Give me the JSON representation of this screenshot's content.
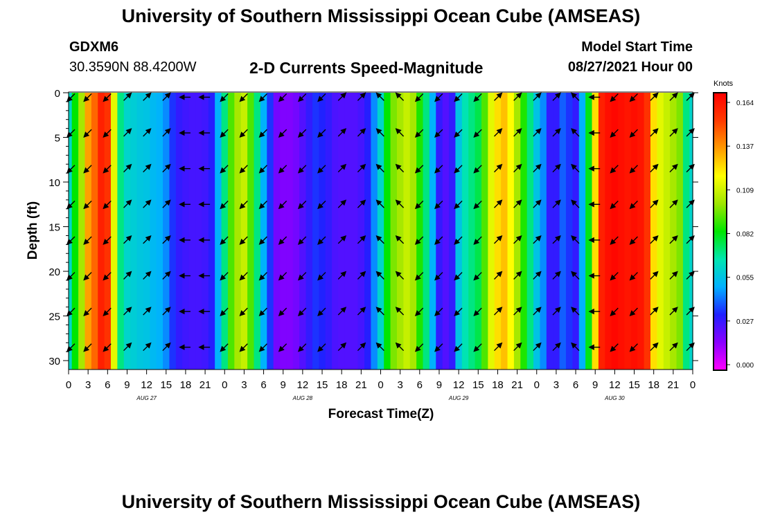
{
  "header": {
    "title": "University of Southern Mississippi Ocean Cube (AMSEAS)",
    "station_id": "GDXM6",
    "coords": "30.3590N  88.4200W",
    "plot_title": "2-D Currents Speed-Magnitude",
    "start_label": "Model Start Time",
    "start_value": "08/27/2021 Hour 00"
  },
  "footer": {
    "title": "University of Southern Mississippi Ocean Cube (AMSEAS)"
  },
  "colorbar": {
    "unit": "Knots",
    "ticks": [
      "0.164",
      "0.137",
      "0.109",
      "0.082",
      "0.055",
      "0.027",
      "0.000"
    ],
    "stops": [
      "#ff00ff",
      "#8a00ff",
      "#2020ff",
      "#00b0ff",
      "#00e6b0",
      "#00e600",
      "#9ee600",
      "#ffff00",
      "#ff9a00",
      "#ff3a00",
      "#ff0000"
    ]
  },
  "chart_data": {
    "type": "heatmap",
    "title": "2-D Currents Speed-Magnitude",
    "xlabel": "Forecast Time(Z)",
    "ylabel": "Depth (ft)",
    "unit": "Knots",
    "vmin": 0.0,
    "vmax": 0.164,
    "x_hours": [
      0,
      3,
      6,
      9,
      12,
      15,
      18,
      21,
      24,
      27,
      30,
      33,
      36,
      39,
      42,
      45,
      48,
      51,
      54,
      57,
      60,
      63,
      66,
      69,
      72,
      75,
      78,
      81,
      84,
      87,
      90,
      93,
      96
    ],
    "x_tick_labels": [
      "0",
      "3",
      "6",
      "9",
      "12",
      "15",
      "18",
      "21",
      "0",
      "3",
      "6",
      "9",
      "12",
      "15",
      "18",
      "21",
      "0",
      "3",
      "6",
      "9",
      "12",
      "15",
      "18",
      "21",
      "0",
      "3",
      "6",
      "9",
      "12",
      "15",
      "18",
      "21",
      "0"
    ],
    "date_labels": [
      {
        "label": "AUG 27",
        "hour": 12
      },
      {
        "label": "AUG 28",
        "hour": 36
      },
      {
        "label": "AUG 29",
        "hour": 60
      },
      {
        "label": "AUG 30",
        "hour": 84
      }
    ],
    "y_ticks": [
      0,
      5,
      10,
      15,
      20,
      25,
      30
    ],
    "ylim": [
      31,
      0
    ],
    "xlim": [
      0,
      96
    ],
    "profile_hours": [
      0,
      1,
      2,
      3,
      4,
      5,
      6,
      7,
      8,
      9,
      10,
      11,
      12,
      13,
      14,
      15,
      16,
      17,
      18,
      19,
      20,
      21,
      22,
      23,
      24,
      25,
      26,
      27,
      28,
      29,
      30,
      31,
      32,
      33,
      34,
      35,
      36,
      37,
      38,
      39,
      40,
      41,
      42,
      43,
      44,
      45,
      46,
      47,
      48,
      49,
      50,
      51,
      52,
      53,
      54,
      55,
      56,
      57,
      58,
      59,
      60,
      61,
      62,
      63,
      64,
      65,
      66,
      67,
      68,
      69,
      70,
      71,
      72,
      73,
      74,
      75,
      76,
      77,
      78,
      79,
      80,
      81,
      82,
      83,
      84,
      85,
      86,
      87,
      88,
      89,
      90,
      91,
      92,
      93,
      94,
      95,
      96
    ],
    "speed_profile": [
      0.06,
      0.082,
      0.1,
      0.13,
      0.14,
      0.155,
      0.15,
      0.11,
      0.07,
      0.06,
      0.058,
      0.056,
      0.055,
      0.052,
      0.05,
      0.045,
      0.035,
      0.03,
      0.028,
      0.027,
      0.027,
      0.028,
      0.032,
      0.05,
      0.07,
      0.09,
      0.1,
      0.105,
      0.09,
      0.07,
      0.05,
      0.035,
      0.02,
      0.018,
      0.018,
      0.02,
      0.025,
      0.03,
      0.035,
      0.033,
      0.03,
      0.026,
      0.025,
      0.025,
      0.025,
      0.027,
      0.032,
      0.045,
      0.06,
      0.082,
      0.095,
      0.1,
      0.105,
      0.1,
      0.085,
      0.07,
      0.05,
      0.03,
      0.025,
      0.03,
      0.055,
      0.065,
      0.07,
      0.075,
      0.09,
      0.11,
      0.12,
      0.125,
      0.115,
      0.1,
      0.085,
      0.07,
      0.055,
      0.045,
      0.03,
      0.03,
      0.04,
      0.035,
      0.03,
      0.05,
      0.08,
      0.12,
      0.155,
      0.16,
      0.162,
      0.16,
      0.158,
      0.16,
      0.158,
      0.15,
      0.12,
      0.11,
      0.105,
      0.1,
      0.095,
      0.07,
      0.06
    ],
    "arrow_depths": [
      0.5,
      4.5,
      8.5,
      12.5,
      16.5,
      20.5,
      24.5,
      28.5
    ],
    "arrow_hours": [
      0,
      3,
      6,
      9,
      12,
      15,
      18,
      21,
      24,
      27,
      30,
      33,
      36,
      39,
      42,
      45,
      48,
      51,
      54,
      57,
      60,
      63,
      66,
      69,
      72,
      75,
      78,
      81,
      84,
      87,
      90,
      93,
      96
    ],
    "arrow_direction_deg": [
      225,
      225,
      225,
      45,
      45,
      45,
      180,
      180,
      225,
      225,
      225,
      225,
      225,
      225,
      45,
      45,
      135,
      135,
      225,
      225,
      225,
      225,
      45,
      45,
      45,
      45,
      135,
      180,
      225,
      225,
      45,
      45,
      45
    ]
  }
}
